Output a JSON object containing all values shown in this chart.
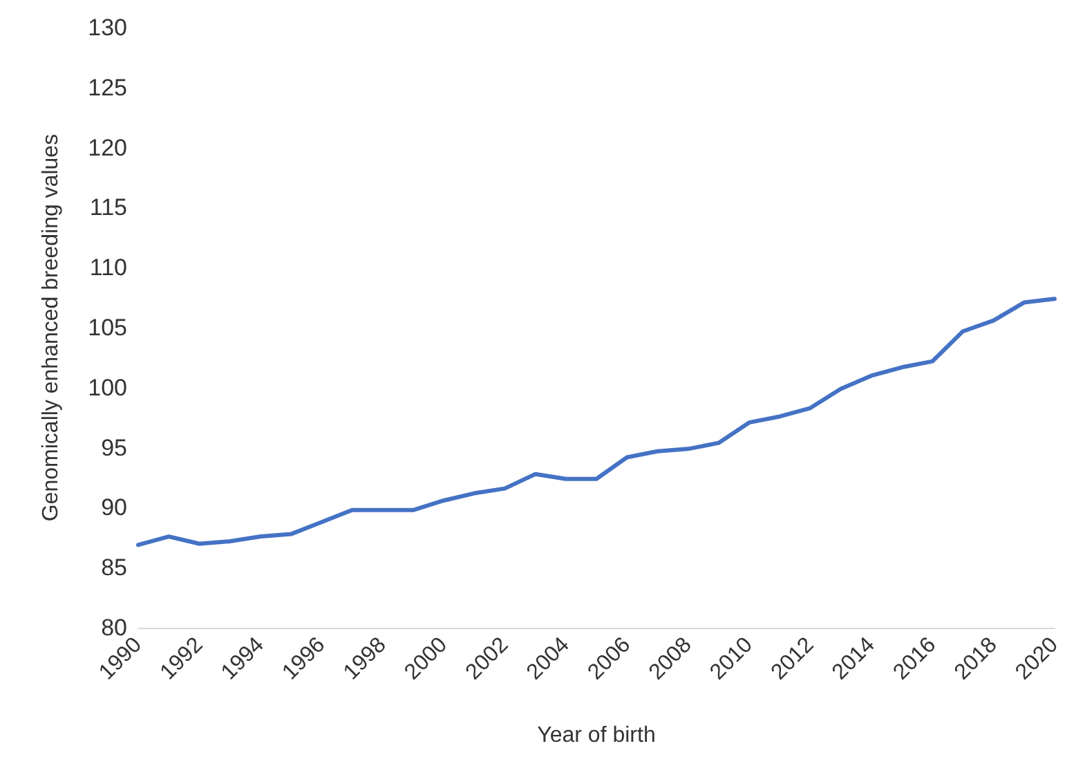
{
  "chart_data": {
    "type": "line",
    "xlabel": "Year of birth",
    "ylabel": "Genomically enhanced breeding values",
    "categories": [
      "1990",
      null,
      "1992",
      null,
      "1994",
      null,
      "1996",
      null,
      "1998",
      null,
      "2000",
      null,
      "2002",
      null,
      "2004",
      null,
      "2006",
      null,
      "2008",
      null,
      "2010",
      null,
      "2012",
      null,
      "2014",
      null,
      "2016",
      null,
      "2018",
      null,
      "2020"
    ],
    "series": [
      {
        "color": "#4472c4",
        "values": [
          86.9,
          87.6,
          87.0,
          87.2,
          87.6,
          87.8,
          88.8,
          89.8,
          89.8,
          89.8,
          90.6,
          91.2,
          91.6,
          92.8,
          92.4,
          92.4,
          94.2,
          94.7,
          94.9,
          95.4,
          97.1,
          97.6,
          98.3,
          99.9,
          101.0,
          101.7,
          102.2,
          104.7,
          105.6,
          107.1,
          107.4
        ]
      }
    ],
    "ylim": [
      80,
      130
    ],
    "yticks": [
      80,
      85,
      90,
      95,
      100,
      105,
      110,
      115,
      120,
      125,
      130
    ],
    "grid": false,
    "marker": "none",
    "line_style": "solid"
  }
}
